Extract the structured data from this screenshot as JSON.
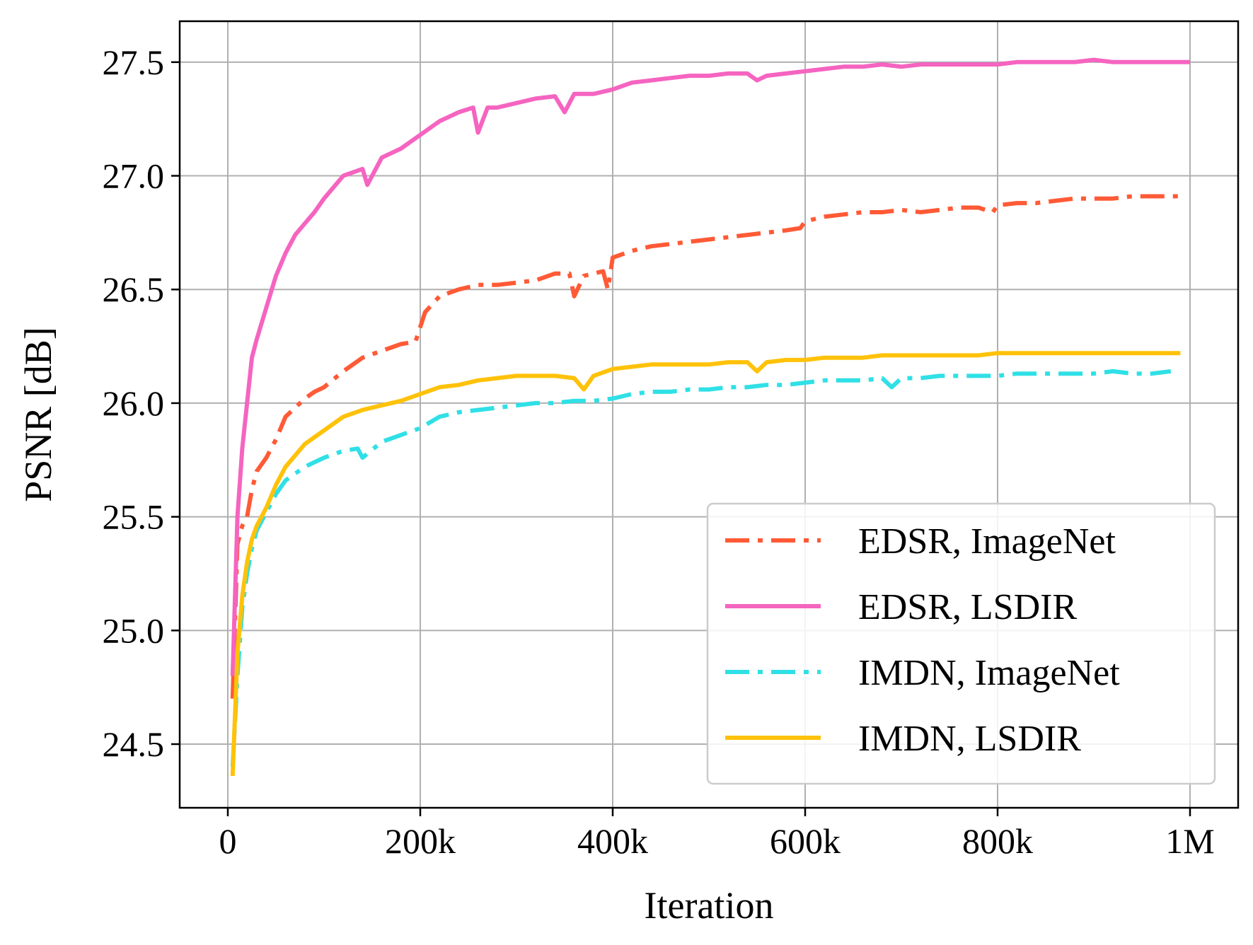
{
  "chart_data": {
    "type": "line",
    "xlabel": "Iteration",
    "ylabel": "PSNR [dB]",
    "xlim": [
      -50000,
      1050000
    ],
    "ylim": [
      24.22,
      27.68
    ],
    "x_ticks": [
      {
        "value": 0,
        "label": "0"
      },
      {
        "value": 200000,
        "label": "200k"
      },
      {
        "value": 400000,
        "label": "400k"
      },
      {
        "value": 600000,
        "label": "600k"
      },
      {
        "value": 800000,
        "label": "800k"
      },
      {
        "value": 1000000,
        "label": "1M"
      }
    ],
    "y_ticks": [
      {
        "value": 24.5,
        "label": "24.5"
      },
      {
        "value": 25.0,
        "label": "25.0"
      },
      {
        "value": 25.5,
        "label": "25.5"
      },
      {
        "value": 26.0,
        "label": "26.0"
      },
      {
        "value": 26.5,
        "label": "26.5"
      },
      {
        "value": 27.0,
        "label": "27.0"
      },
      {
        "value": 27.5,
        "label": "27.5"
      }
    ],
    "grid": true,
    "legend_position": "bottom-right",
    "series": [
      {
        "name": "EDSR, ImageNet",
        "color": "#ff5a36",
        "dash": "dashdot",
        "x": [
          5000,
          10000,
          15000,
          20000,
          25000,
          30000,
          40000,
          50000,
          60000,
          70000,
          80000,
          90000,
          100000,
          120000,
          140000,
          160000,
          180000,
          195000,
          205000,
          220000,
          240000,
          260000,
          280000,
          300000,
          320000,
          340000,
          355000,
          360000,
          370000,
          390000,
          395000,
          400000,
          420000,
          440000,
          460000,
          480000,
          500000,
          520000,
          540000,
          560000,
          580000,
          595000,
          600000,
          620000,
          640000,
          660000,
          680000,
          700000,
          720000,
          740000,
          760000,
          780000,
          795000,
          800000,
          820000,
          840000,
          860000,
          880000,
          900000,
          920000,
          940000,
          960000,
          980000,
          990000
        ],
        "y": [
          24.7,
          25.38,
          25.46,
          25.5,
          25.62,
          25.7,
          25.76,
          25.84,
          25.94,
          25.98,
          26.02,
          26.05,
          26.07,
          26.14,
          26.2,
          26.23,
          26.26,
          26.27,
          26.4,
          26.47,
          26.5,
          26.52,
          26.52,
          26.53,
          26.54,
          26.57,
          26.57,
          26.47,
          26.56,
          26.58,
          26.5,
          26.64,
          26.67,
          26.69,
          26.7,
          26.71,
          26.72,
          26.73,
          26.74,
          26.75,
          26.76,
          26.77,
          26.8,
          26.82,
          26.83,
          26.84,
          26.84,
          26.85,
          26.84,
          26.85,
          26.86,
          26.86,
          26.84,
          26.87,
          26.88,
          26.88,
          26.89,
          26.9,
          26.9,
          26.9,
          26.91,
          26.91,
          26.91,
          26.91
        ]
      },
      {
        "name": "EDSR, LSDIR",
        "color": "#f564c0",
        "dash": "solid",
        "x": [
          5000,
          10000,
          15000,
          20000,
          25000,
          30000,
          40000,
          50000,
          60000,
          70000,
          80000,
          90000,
          100000,
          120000,
          140000,
          145000,
          160000,
          180000,
          200000,
          220000,
          240000,
          255000,
          260000,
          270000,
          280000,
          300000,
          320000,
          340000,
          350000,
          360000,
          380000,
          400000,
          420000,
          440000,
          460000,
          480000,
          500000,
          520000,
          540000,
          550000,
          560000,
          580000,
          600000,
          620000,
          640000,
          660000,
          680000,
          700000,
          720000,
          740000,
          760000,
          780000,
          800000,
          820000,
          840000,
          860000,
          880000,
          900000,
          920000,
          940000,
          960000,
          980000,
          1000000
        ],
        "y": [
          24.8,
          25.5,
          25.8,
          26.0,
          26.2,
          26.28,
          26.42,
          26.56,
          26.66,
          26.74,
          26.79,
          26.84,
          26.9,
          27.0,
          27.03,
          26.96,
          27.08,
          27.12,
          27.18,
          27.24,
          27.28,
          27.3,
          27.19,
          27.3,
          27.3,
          27.32,
          27.34,
          27.35,
          27.28,
          27.36,
          27.36,
          27.38,
          27.41,
          27.42,
          27.43,
          27.44,
          27.44,
          27.45,
          27.45,
          27.42,
          27.44,
          27.45,
          27.46,
          27.47,
          27.48,
          27.48,
          27.49,
          27.48,
          27.49,
          27.49,
          27.49,
          27.49,
          27.49,
          27.5,
          27.5,
          27.5,
          27.5,
          27.51,
          27.5,
          27.5,
          27.5,
          27.5,
          27.5
        ]
      },
      {
        "name": "IMDN, ImageNet",
        "color": "#2fe0e6",
        "dash": "dashdot",
        "x": [
          5000,
          10000,
          15000,
          20000,
          25000,
          30000,
          40000,
          50000,
          60000,
          80000,
          100000,
          120000,
          135000,
          140000,
          160000,
          180000,
          200000,
          220000,
          240000,
          260000,
          280000,
          300000,
          320000,
          340000,
          360000,
          380000,
          400000,
          420000,
          440000,
          460000,
          480000,
          500000,
          520000,
          540000,
          560000,
          580000,
          600000,
          620000,
          640000,
          660000,
          680000,
          690000,
          700000,
          720000,
          740000,
          760000,
          780000,
          800000,
          820000,
          840000,
          860000,
          880000,
          900000,
          920000,
          940000,
          960000,
          980000
        ],
        "y": [
          24.4,
          24.8,
          25.1,
          25.25,
          25.36,
          25.44,
          25.52,
          25.6,
          25.66,
          25.72,
          25.76,
          25.79,
          25.8,
          25.76,
          25.83,
          25.86,
          25.89,
          25.94,
          25.96,
          25.97,
          25.98,
          25.99,
          26.0,
          26.0,
          26.01,
          26.01,
          26.02,
          26.04,
          26.05,
          26.05,
          26.06,
          26.06,
          26.07,
          26.07,
          26.08,
          26.08,
          26.09,
          26.1,
          26.1,
          26.1,
          26.11,
          26.07,
          26.11,
          26.11,
          26.12,
          26.12,
          26.12,
          26.12,
          26.13,
          26.13,
          26.13,
          26.13,
          26.13,
          26.14,
          26.13,
          26.13,
          26.14
        ]
      },
      {
        "name": "IMDN, LSDIR",
        "color": "#ffc20a",
        "dash": "solid",
        "x": [
          5000,
          10000,
          15000,
          20000,
          25000,
          30000,
          40000,
          50000,
          60000,
          80000,
          100000,
          120000,
          140000,
          160000,
          180000,
          200000,
          220000,
          240000,
          260000,
          280000,
          300000,
          320000,
          340000,
          360000,
          370000,
          380000,
          400000,
          420000,
          440000,
          460000,
          480000,
          500000,
          520000,
          540000,
          550000,
          560000,
          580000,
          600000,
          620000,
          640000,
          660000,
          680000,
          700000,
          720000,
          740000,
          760000,
          780000,
          800000,
          820000,
          840000,
          860000,
          880000,
          900000,
          920000,
          940000,
          960000,
          980000,
          990000
        ],
        "y": [
          24.36,
          24.9,
          25.15,
          25.3,
          25.4,
          25.46,
          25.54,
          25.64,
          25.72,
          25.82,
          25.88,
          25.94,
          25.97,
          25.99,
          26.01,
          26.04,
          26.07,
          26.08,
          26.1,
          26.11,
          26.12,
          26.12,
          26.12,
          26.11,
          26.06,
          26.12,
          26.15,
          26.16,
          26.17,
          26.17,
          26.17,
          26.17,
          26.18,
          26.18,
          26.14,
          26.18,
          26.19,
          26.19,
          26.2,
          26.2,
          26.2,
          26.21,
          26.21,
          26.21,
          26.21,
          26.21,
          26.21,
          26.22,
          26.22,
          26.22,
          26.22,
          26.22,
          26.22,
          26.22,
          26.22,
          26.22,
          26.22,
          26.22
        ]
      }
    ]
  }
}
